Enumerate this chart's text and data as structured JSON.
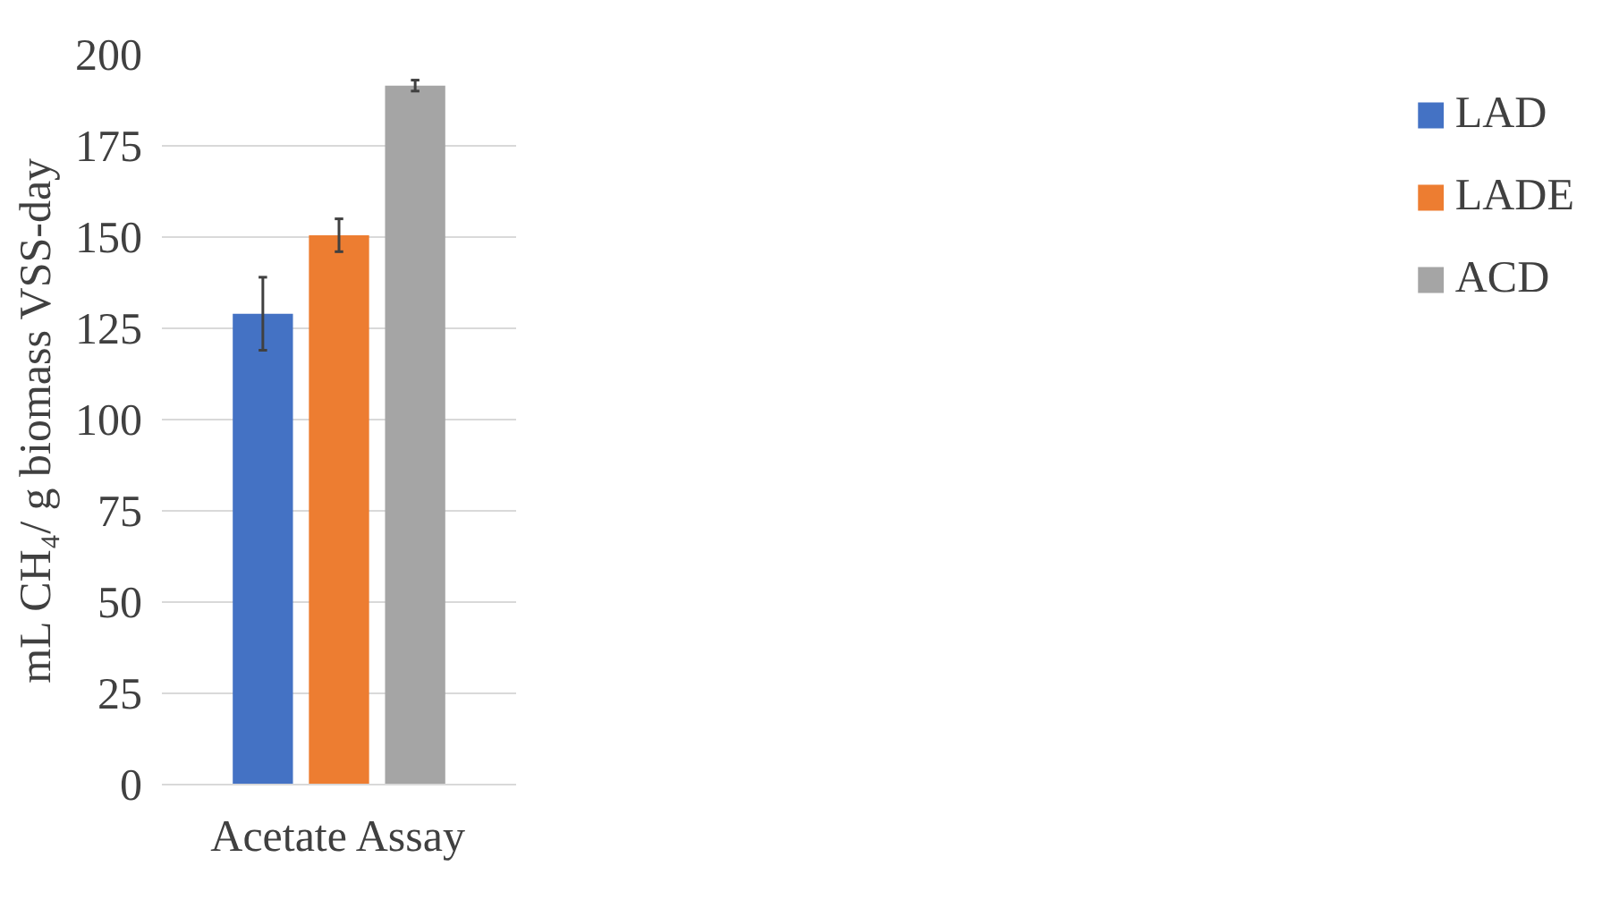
{
  "chart_data": {
    "type": "bar",
    "ylabel": "mL CH₄/ g biomass VSS-day",
    "categories": [
      "Acetate Assay"
    ],
    "series": [
      {
        "name": "LAD",
        "color": "#4472c4",
        "values": [
          129
        ],
        "errors": [
          10
        ]
      },
      {
        "name": "LADE",
        "color": "#ed7d31",
        "values": [
          150.5
        ],
        "errors": [
          4.5
        ]
      },
      {
        "name": "ACD",
        "color": "#a5a5a5",
        "values": [
          191.5
        ],
        "errors": [
          1.5
        ]
      }
    ],
    "ylim": [
      0,
      200
    ],
    "yticks": [
      0,
      25,
      50,
      75,
      100,
      125,
      150,
      175,
      200
    ],
    "grid": "y",
    "legend": "right"
  }
}
